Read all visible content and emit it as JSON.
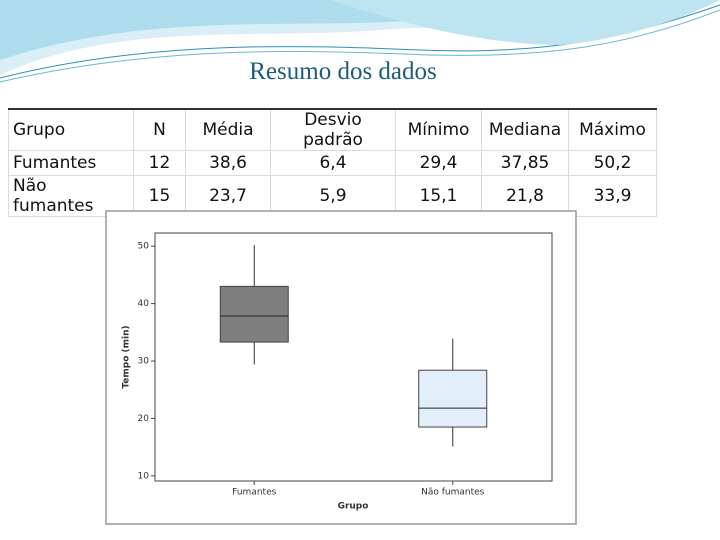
{
  "title": "Resumo dos dados",
  "table": {
    "header": [
      "Grupo",
      "N",
      "Média",
      "Desvio padrão",
      "Mínimo",
      "Mediana",
      "Máximo"
    ],
    "rows": [
      [
        "Fumantes",
        "12",
        "38,6",
        "6,4",
        "29,4",
        "37,85",
        "50,2"
      ],
      [
        "Não fumantes",
        "15",
        "23,7",
        "5,9",
        "15,1",
        "21,8",
        "33,9"
      ]
    ]
  },
  "chart_data": {
    "type": "boxplot",
    "xlabel": "Grupo",
    "ylabel": "Tempo (min)",
    "categories": [
      "Fumantes",
      "Não fumantes"
    ],
    "boxes": [
      {
        "min": 29.4,
        "q1": 33.3,
        "median": 37.85,
        "q3": 43.0,
        "max": 50.2,
        "color": "#7f7f7f"
      },
      {
        "min": 15.1,
        "q1": 18.5,
        "median": 21.8,
        "q3": 28.4,
        "max": 33.9,
        "color": "#e3eefb"
      }
    ],
    "ylim": [
      9.1,
      52.3
    ],
    "yticks": [
      10,
      20,
      30,
      40,
      50
    ]
  }
}
